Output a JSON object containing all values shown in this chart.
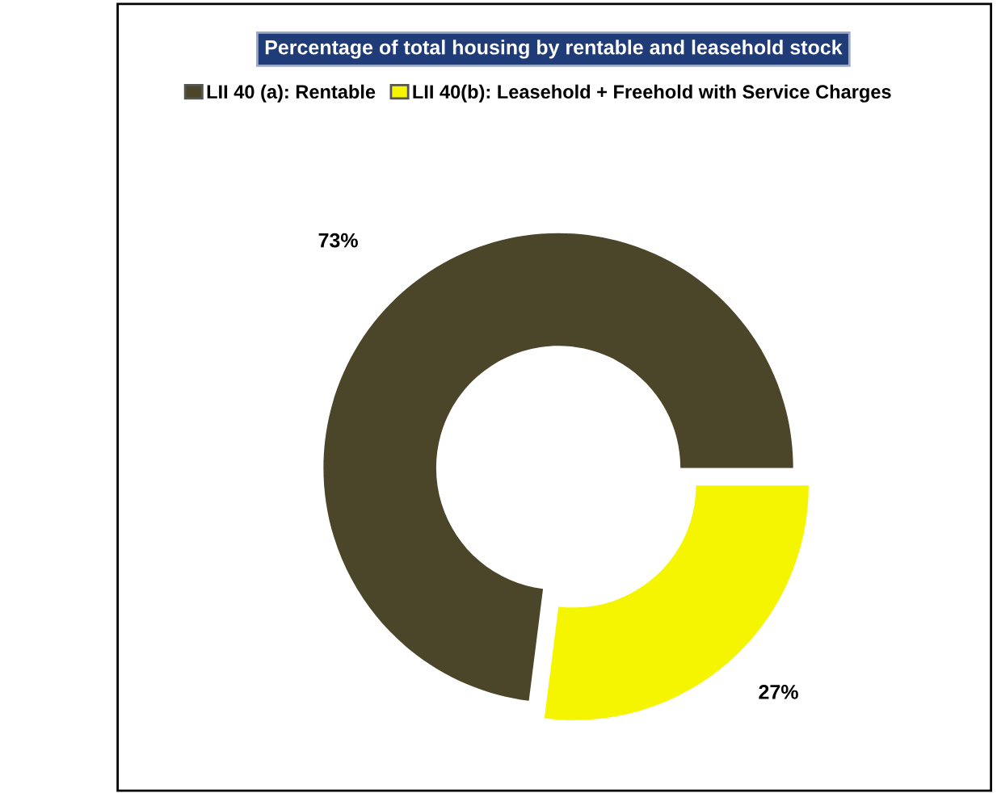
{
  "chart_data": {
    "type": "donut",
    "title": "Percentage of total housing by rentable and leasehold stock",
    "categories": [
      "LII 40 (a): Rentable",
      "LII 40(b): Leasehold + Freehold with Service Charges"
    ],
    "values": [
      73,
      27
    ],
    "colors": [
      "#4b4529",
      "#f5f500"
    ],
    "value_labels": [
      "73%",
      "27%"
    ],
    "legend": "top"
  }
}
